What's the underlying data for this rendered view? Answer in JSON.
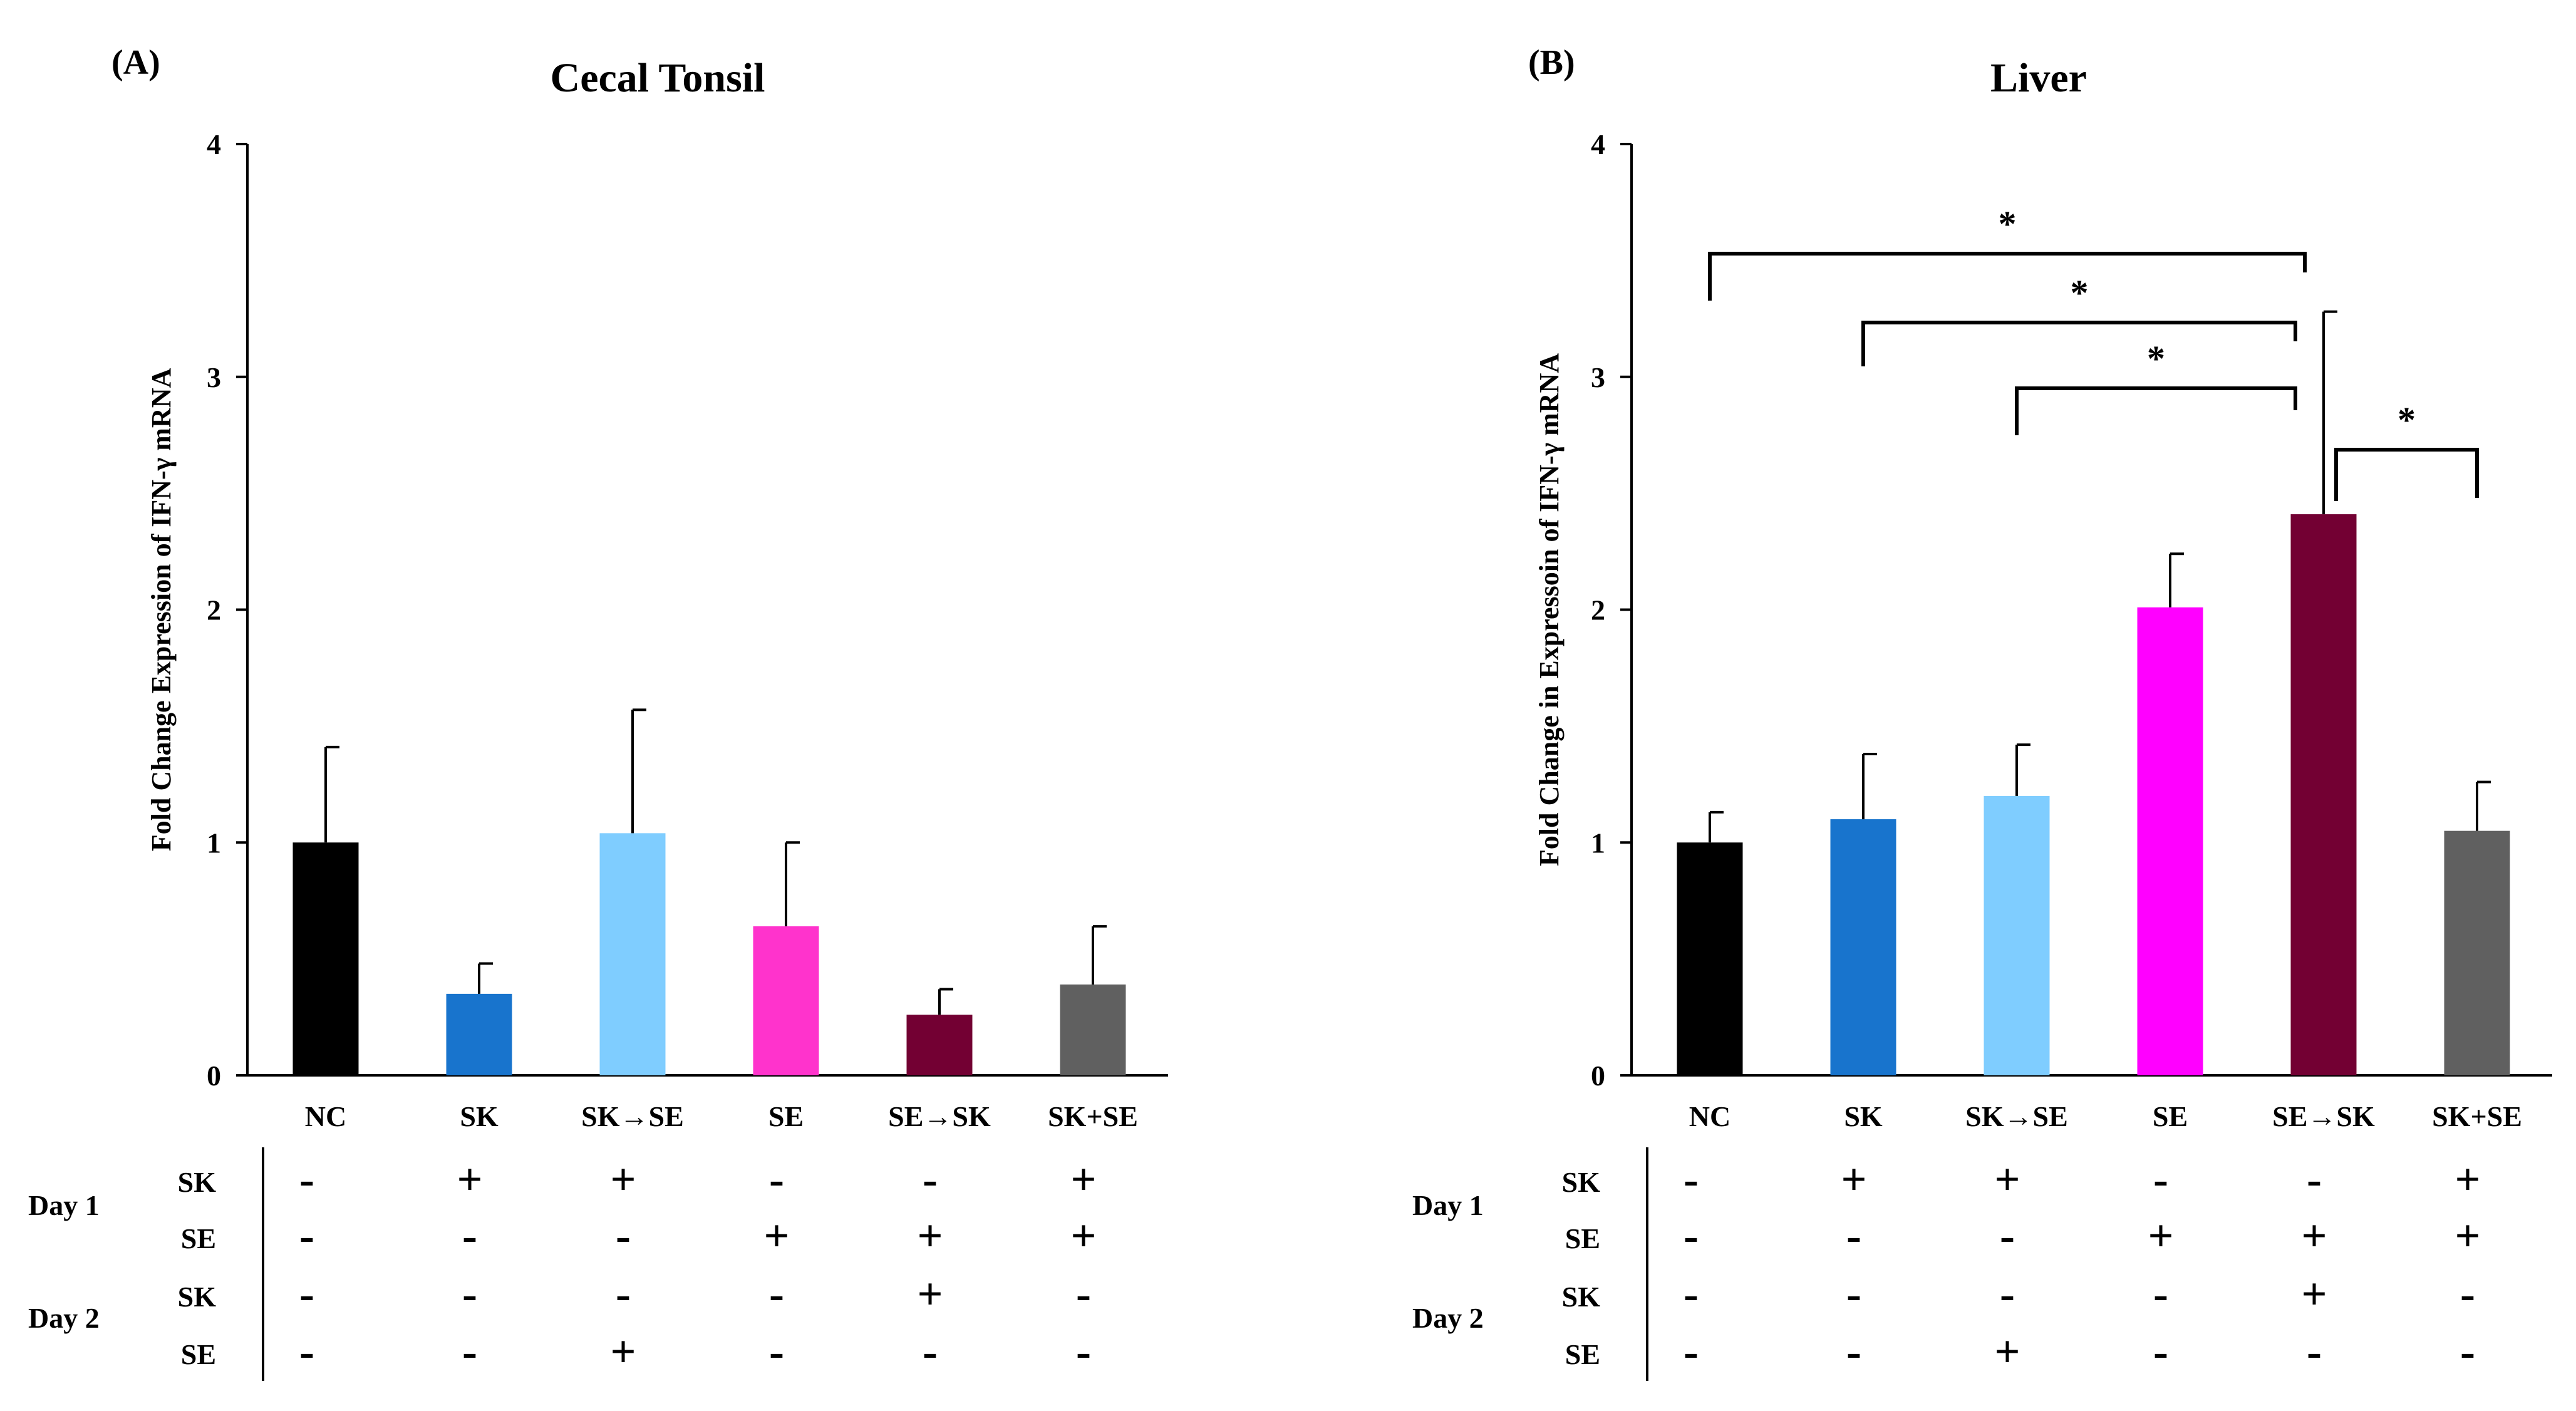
{
  "chart_data": [
    {
      "panel": "(A)",
      "type": "bar",
      "title": "Cecal Tonsil",
      "ylabel": "Fold Change Expression of IFN-γ mRNA",
      "xlabel": "",
      "ylim": [
        0,
        4
      ],
      "yticks": [
        "0",
        "1",
        "2",
        "3",
        "4"
      ],
      "categories": [
        "NC",
        "SK",
        "SK→SE",
        "SE",
        "SE→SK",
        "SK+SE"
      ],
      "values": [
        1.0,
        0.35,
        1.04,
        0.64,
        0.26,
        0.39
      ],
      "errors": [
        0.41,
        0.13,
        0.53,
        0.36,
        0.11,
        0.25
      ],
      "colors": [
        "#000000",
        "#1874cd",
        "#7fcdff",
        "#ff33cc",
        "#730033",
        "#606060"
      ],
      "significance": []
    },
    {
      "panel": "(B)",
      "type": "bar",
      "title": "Liver",
      "ylabel": "Fold Change in Expressoin of IFN-γ mRNA",
      "xlabel": "",
      "ylim": [
        0,
        4
      ],
      "yticks": [
        "0",
        "1",
        "2",
        "3",
        "4"
      ],
      "categories": [
        "NC",
        "SK",
        "SK→SE",
        "SE",
        "SE→SK",
        "SK+SE"
      ],
      "values": [
        1.0,
        1.1,
        1.2,
        2.01,
        2.41,
        1.05
      ],
      "errors": [
        0.13,
        0.28,
        0.22,
        0.23,
        0.87,
        0.21
      ],
      "colors": [
        "#000000",
        "#1874cd",
        "#7fcdff",
        "#ff00ff",
        "#730033",
        "#606060"
      ],
      "significance": [
        {
          "from": 0,
          "to": 4,
          "label": "*"
        },
        {
          "from": 1,
          "to": 4,
          "label": "*"
        },
        {
          "from": 2,
          "to": 4,
          "label": "*"
        },
        {
          "from": 4,
          "to": 5,
          "label": "*"
        }
      ]
    }
  ],
  "treatment_table": {
    "days": [
      "Day 1",
      "Day 2"
    ],
    "rows": [
      {
        "day": 0,
        "agent": "SK",
        "signs": [
          "-",
          "+",
          "+",
          "-",
          "-",
          "+"
        ]
      },
      {
        "day": 0,
        "agent": "SE",
        "signs": [
          "-",
          "-",
          "-",
          "+",
          "+",
          "+"
        ]
      },
      {
        "day": 1,
        "agent": "SK",
        "signs": [
          "-",
          "-",
          "-",
          "-",
          "+",
          "-"
        ]
      },
      {
        "day": 1,
        "agent": "SE",
        "signs": [
          "-",
          "-",
          "+",
          "-",
          "-",
          "-"
        ]
      }
    ]
  }
}
